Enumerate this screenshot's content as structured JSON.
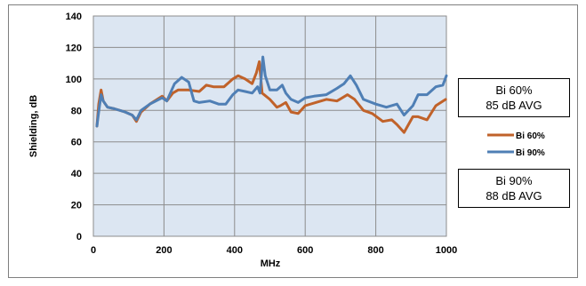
{
  "chart_data": {
    "type": "line",
    "xlabel": "MHz",
    "ylabel": "Shielding, dB",
    "xlim": [
      0,
      1000
    ],
    "ylim": [
      0,
      140
    ],
    "xticks": [
      "0",
      "200",
      "400",
      "600",
      "800",
      "1000"
    ],
    "yticks": [
      "0",
      "20",
      "40",
      "60",
      "80",
      "100",
      "120",
      "140"
    ],
    "grid": true,
    "plot_background": "#dce6f2",
    "legend_position": "right",
    "series": [
      {
        "name": "Bi 60%",
        "color": "#c0622a",
        "points": [
          [
            10,
            70
          ],
          [
            15,
            84
          ],
          [
            22,
            93
          ],
          [
            28,
            86
          ],
          [
            40,
            82
          ],
          [
            60,
            81
          ],
          [
            90,
            79
          ],
          [
            110,
            77
          ],
          [
            122,
            73
          ],
          [
            135,
            79
          ],
          [
            160,
            84
          ],
          [
            195,
            89
          ],
          [
            208,
            86
          ],
          [
            225,
            91
          ],
          [
            240,
            93
          ],
          [
            270,
            93
          ],
          [
            300,
            92
          ],
          [
            320,
            96
          ],
          [
            340,
            95
          ],
          [
            370,
            95
          ],
          [
            395,
            100
          ],
          [
            410,
            102
          ],
          [
            430,
            100
          ],
          [
            450,
            97
          ],
          [
            462,
            104
          ],
          [
            470,
            111
          ],
          [
            478,
            91
          ],
          [
            500,
            87
          ],
          [
            520,
            82
          ],
          [
            530,
            83
          ],
          [
            545,
            85
          ],
          [
            560,
            79
          ],
          [
            580,
            78
          ],
          [
            600,
            83
          ],
          [
            630,
            85
          ],
          [
            660,
            87
          ],
          [
            690,
            86
          ],
          [
            720,
            90
          ],
          [
            740,
            87
          ],
          [
            765,
            80
          ],
          [
            790,
            78
          ],
          [
            820,
            73
          ],
          [
            845,
            74
          ],
          [
            860,
            71
          ],
          [
            880,
            66
          ],
          [
            905,
            76
          ],
          [
            920,
            76
          ],
          [
            945,
            74
          ],
          [
            970,
            83
          ],
          [
            998,
            87
          ]
        ]
      },
      {
        "name": "Bi 90%",
        "color": "#4f7fb5",
        "points": [
          [
            10,
            70
          ],
          [
            15,
            79
          ],
          [
            22,
            90
          ],
          [
            28,
            86
          ],
          [
            40,
            82
          ],
          [
            60,
            81
          ],
          [
            90,
            79
          ],
          [
            110,
            77
          ],
          [
            122,
            74
          ],
          [
            135,
            80
          ],
          [
            160,
            84
          ],
          [
            195,
            88
          ],
          [
            208,
            86
          ],
          [
            230,
            97
          ],
          [
            250,
            101
          ],
          [
            270,
            98
          ],
          [
            285,
            86
          ],
          [
            300,
            85
          ],
          [
            330,
            86
          ],
          [
            355,
            84
          ],
          [
            375,
            84
          ],
          [
            395,
            90
          ],
          [
            410,
            93
          ],
          [
            430,
            92
          ],
          [
            450,
            91
          ],
          [
            465,
            95
          ],
          [
            472,
            91
          ],
          [
            480,
            114
          ],
          [
            487,
            102
          ],
          [
            500,
            93
          ],
          [
            520,
            93
          ],
          [
            535,
            96
          ],
          [
            545,
            91
          ],
          [
            560,
            87
          ],
          [
            580,
            85
          ],
          [
            600,
            88
          ],
          [
            625,
            89
          ],
          [
            660,
            90
          ],
          [
            690,
            94
          ],
          [
            710,
            97
          ],
          [
            728,
            102
          ],
          [
            745,
            96
          ],
          [
            765,
            87
          ],
          [
            800,
            84
          ],
          [
            830,
            82
          ],
          [
            860,
            84
          ],
          [
            880,
            77
          ],
          [
            905,
            83
          ],
          [
            920,
            90
          ],
          [
            945,
            90
          ],
          [
            970,
            95
          ],
          [
            990,
            96
          ],
          [
            1000,
            102
          ]
        ]
      }
    ],
    "annotations": [
      {
        "line1": "Bi 60%",
        "line2": "85 dB AVG"
      },
      {
        "line1": "Bi 90%",
        "line2": "88 dB AVG"
      }
    ]
  }
}
